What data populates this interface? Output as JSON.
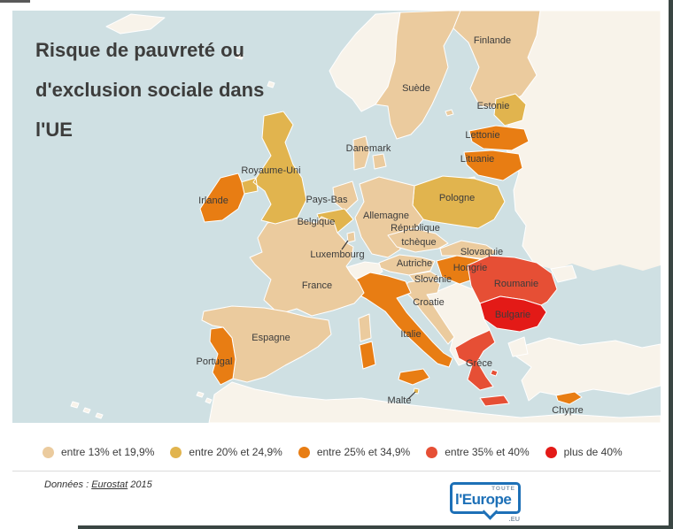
{
  "map": {
    "title_lines": [
      "Risque de pauvreté ou",
      "d'exclusion sociale dans",
      "l'UE"
    ],
    "sea_color": "#cfe0e3",
    "non_eu_color": "#f8f3ea",
    "palette": {
      "13-19.9": "#ebcb9e",
      "20-24.9": "#e1b44e",
      "25-34.9": "#e87d13",
      "35-40": "#e64f35",
      "40+": "#e31a17"
    },
    "countries": [
      {
        "id": "se",
        "label": "Suède",
        "category": "13-19.9"
      },
      {
        "id": "fi",
        "label": "Finlande",
        "category": "13-19.9"
      },
      {
        "id": "ee",
        "label": "Estonie",
        "category": "20-24.9"
      },
      {
        "id": "lv",
        "label": "Lettonie",
        "category": "25-34.9"
      },
      {
        "id": "lt",
        "label": "Lituanie",
        "category": "25-34.9"
      },
      {
        "id": "dk",
        "label": "Danemark",
        "category": "13-19.9"
      },
      {
        "id": "pl",
        "label": "Pologne",
        "category": "20-24.9"
      },
      {
        "id": "de",
        "label": "Allemagne",
        "category": "13-19.9"
      },
      {
        "id": "nl",
        "label": "Pays-Bas",
        "category": "13-19.9"
      },
      {
        "id": "be",
        "label": "Belgique",
        "category": "20-24.9"
      },
      {
        "id": "lu",
        "label": "Luxembourg",
        "category": "13-19.9"
      },
      {
        "id": "cz",
        "label": "République tchèque",
        "label_lines": [
          "République",
          "tchèque"
        ],
        "category": "13-19.9"
      },
      {
        "id": "sk",
        "label": "Slovaquie",
        "category": "13-19.9"
      },
      {
        "id": "at",
        "label": "Autriche",
        "category": "13-19.9"
      },
      {
        "id": "hu",
        "label": "Hongrie",
        "category": "25-34.9"
      },
      {
        "id": "si",
        "label": "Slovénie",
        "category": "13-19.9"
      },
      {
        "id": "hr",
        "label": "Croatie",
        "category": "13-19.9"
      },
      {
        "id": "ro",
        "label": "Roumanie",
        "category": "35-40"
      },
      {
        "id": "bg",
        "label": "Bulgarie",
        "category": "40+"
      },
      {
        "id": "gr",
        "label": "Grèce",
        "category": "35-40"
      },
      {
        "id": "it",
        "label": "Italie",
        "category": "25-34.9"
      },
      {
        "id": "fr",
        "label": "France",
        "category": "13-19.9"
      },
      {
        "id": "uk",
        "label": "Royaume-Uni",
        "category": "20-24.9"
      },
      {
        "id": "ie",
        "label": "Irlande",
        "category": "25-34.9"
      },
      {
        "id": "es",
        "label": "Espagne",
        "category": "13-19.9"
      },
      {
        "id": "pt",
        "label": "Portugal",
        "category": "25-34.9"
      },
      {
        "id": "mt",
        "label": "Malte",
        "category": "20-24.9"
      },
      {
        "id": "cy",
        "label": "Chypre",
        "category": "25-34.9"
      }
    ]
  },
  "legend": {
    "items": [
      {
        "label": "entre 13% et 19,9%",
        "color": "#ebcb9e"
      },
      {
        "label": "entre 20% et 24,9%",
        "color": "#e1b44e"
      },
      {
        "label": "entre 25% et 34,9%",
        "color": "#e87d13"
      },
      {
        "label": "entre 35% et 40%",
        "color": "#e64f35"
      },
      {
        "label": "plus de 40%",
        "color": "#e31a17"
      }
    ]
  },
  "source": {
    "prefix": "Données :",
    "link_text": "Eurostat",
    "suffix": "2015"
  },
  "logo": {
    "toute": "TOUTE",
    "name": "l'Europe",
    "eu": ".EU"
  }
}
